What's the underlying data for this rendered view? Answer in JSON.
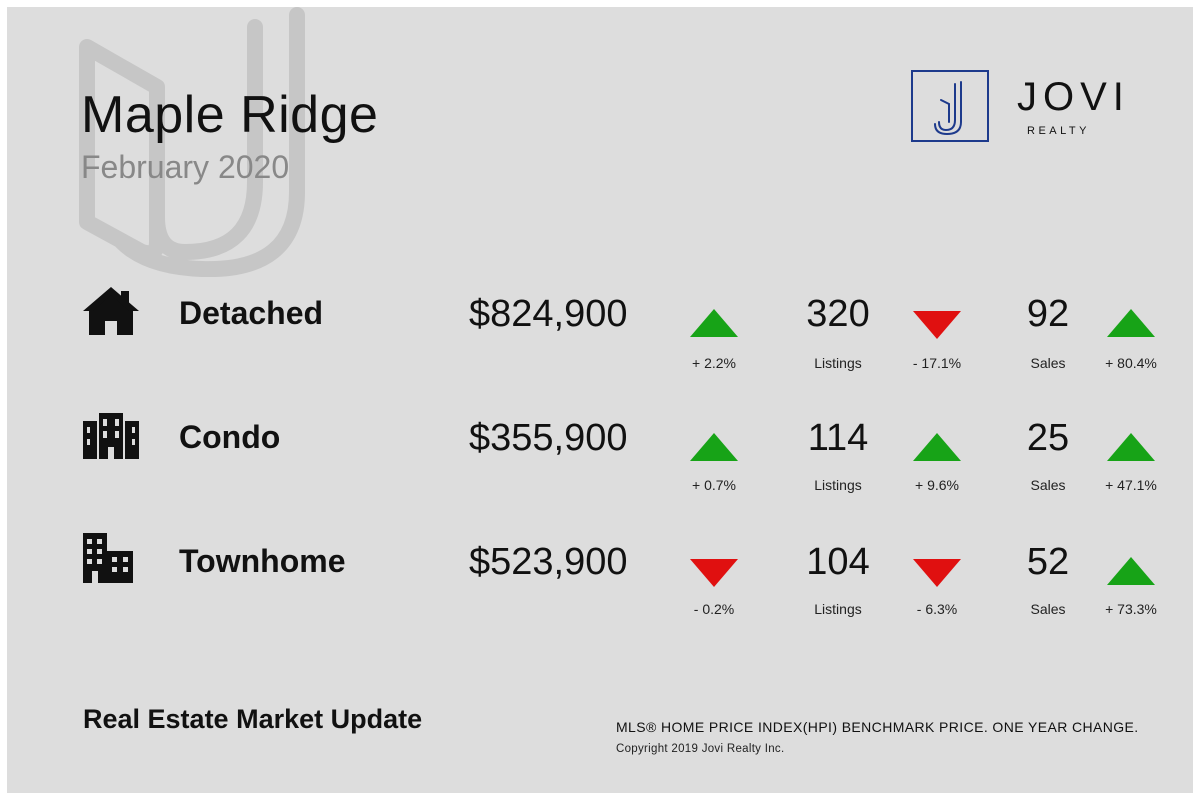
{
  "header": {
    "title": "Maple Ridge",
    "subtitle": "February 2020"
  },
  "brand": {
    "name": "JOVI",
    "tagline": "REALTY",
    "logo_letter": "J",
    "logo_color": "#1d3a8c"
  },
  "colors": {
    "up": "#17a317",
    "down": "#e01010",
    "background": "#dddddd"
  },
  "rows": [
    {
      "label": "Detached",
      "icon": "house-icon",
      "price": "$824,900",
      "price_change": "+ 2.2%",
      "price_trend": "up",
      "listings": "320",
      "listings_label": "Listings",
      "listings_change": "- 17.1%",
      "listings_trend": "down",
      "sales": "92",
      "sales_label": "Sales",
      "sales_change": "+ 80.4%",
      "sales_trend": "up"
    },
    {
      "label": "Condo",
      "icon": "condo-building-icon",
      "price": "$355,900",
      "price_change": "+ 0.7%",
      "price_trend": "up",
      "listings": "114",
      "listings_label": "Listings",
      "listings_change": "+ 9.6%",
      "listings_trend": "up",
      "sales": "25",
      "sales_label": "Sales",
      "sales_change": "+ 47.1%",
      "sales_trend": "up"
    },
    {
      "label": "Townhome",
      "icon": "townhome-building-icon",
      "price": "$523,900",
      "price_change": "- 0.2%",
      "price_trend": "down",
      "listings": "104",
      "listings_label": "Listings",
      "listings_change": "- 6.3%",
      "listings_trend": "down",
      "sales": "52",
      "sales_label": "Sales",
      "sales_change": "+ 73.3%",
      "sales_trend": "up"
    }
  ],
  "footer": {
    "title": "Real Estate Market Update",
    "note": "MLS® HOME PRICE INDEX(HPI) BENCHMARK PRICE. ONE YEAR CHANGE.",
    "copyright": "Copyright 2019 Jovi Realty Inc."
  }
}
